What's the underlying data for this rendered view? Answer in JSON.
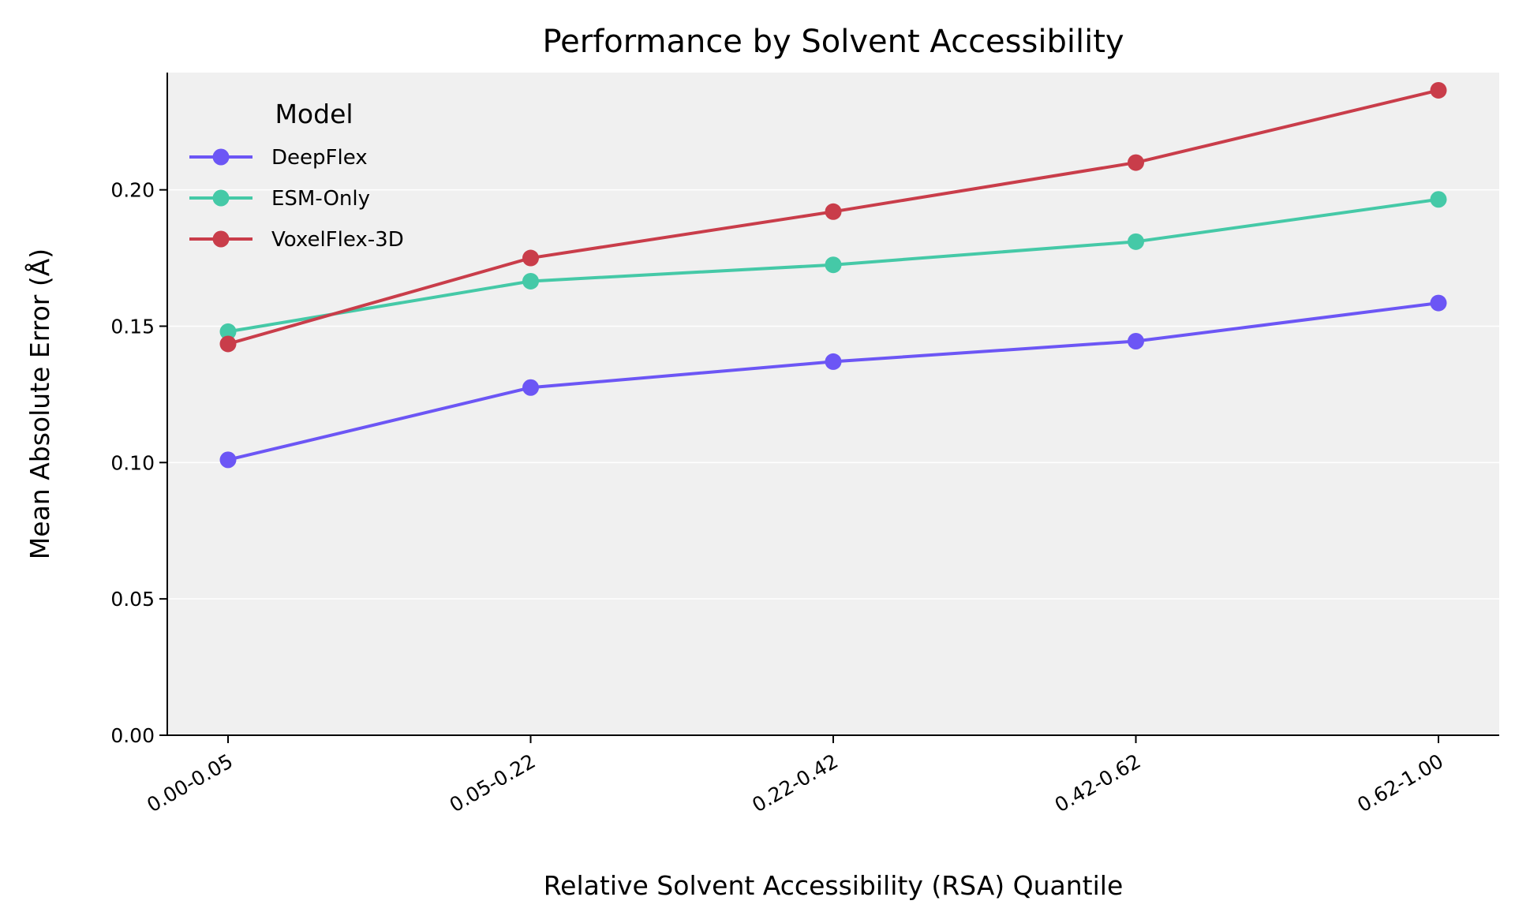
{
  "chart_data": {
    "type": "line",
    "title": "Performance by Solvent Accessibility",
    "xlabel": "Relative Solvent Accessibility (RSA) Quantile",
    "ylabel": "Mean Absolute Error (Å)",
    "categories": [
      "0.00-0.05",
      "0.05-0.22",
      "0.22-0.42",
      "0.42-0.62",
      "0.62-1.00"
    ],
    "ylim": [
      0,
      0.243
    ],
    "yticks": [
      0.0,
      0.05,
      0.1,
      0.15,
      0.2
    ],
    "ytick_labels": [
      "0.00",
      "0.05",
      "0.10",
      "0.15",
      "0.20"
    ],
    "grid": "horizontal",
    "legend": {
      "title": "Model",
      "placement": "top-left"
    },
    "series": [
      {
        "name": "DeepFlex",
        "color": "#6c56f5",
        "values": [
          0.101,
          0.1275,
          0.137,
          0.1445,
          0.1585
        ]
      },
      {
        "name": "ESM-Only",
        "color": "#45c9a7",
        "values": [
          0.148,
          0.1665,
          0.1725,
          0.181,
          0.1965
        ]
      },
      {
        "name": "VoxelFlex-3D",
        "color": "#c93d4a",
        "values": [
          0.1435,
          0.175,
          0.192,
          0.21,
          0.2365
        ]
      }
    ]
  }
}
